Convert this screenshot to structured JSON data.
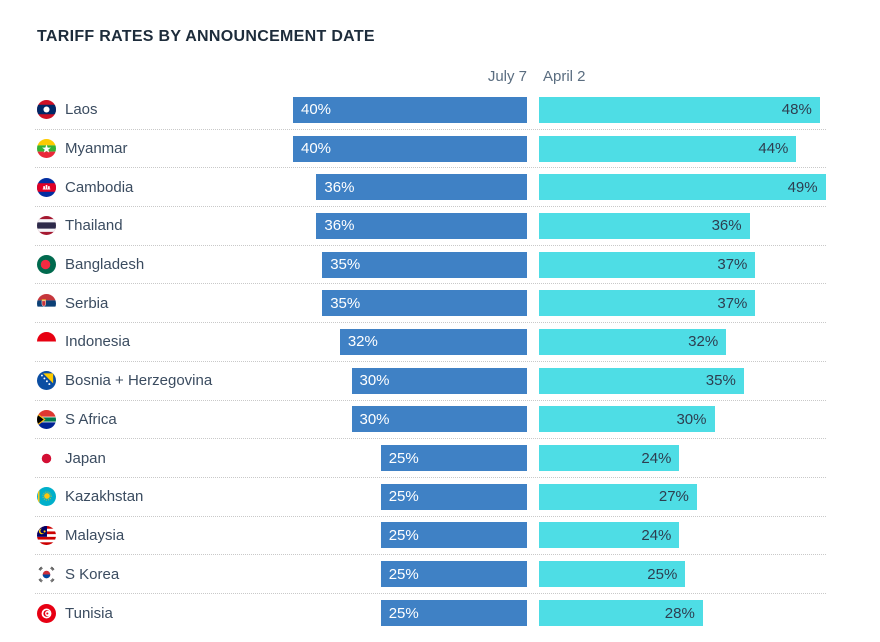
{
  "chart_data": {
    "type": "bar",
    "orientation": "horizontal",
    "title": "TARIFF RATES BY ANNOUNCEMENT DATE",
    "value_suffix": "%",
    "grid": false,
    "column_headers_position": "top",
    "categories": [
      "Laos",
      "Myanmar",
      "Cambodia",
      "Thailand",
      "Bangladesh",
      "Serbia",
      "Indonesia",
      "Bosnia + Herzegovina",
      "S Africa",
      "Japan",
      "Kazakhstan",
      "Malaysia",
      "S Korea",
      "Tunisia"
    ],
    "flag_icons": [
      "laos-flag-icon",
      "myanmar-flag-icon",
      "cambodia-flag-icon",
      "thailand-flag-icon",
      "bangladesh-flag-icon",
      "serbia-flag-icon",
      "indonesia-flag-icon",
      "bosnia-herzegovina-flag-icon",
      "south-africa-flag-icon",
      "japan-flag-icon",
      "kazakhstan-flag-icon",
      "malaysia-flag-icon",
      "south-korea-flag-icon",
      "tunisia-flag-icon"
    ],
    "series": [
      {
        "name": "July 7",
        "color": "#3f81c5",
        "text_color": "#ffffff",
        "bar_alignment": "right",
        "values": [
          40,
          40,
          36,
          36,
          35,
          35,
          32,
          30,
          30,
          25,
          25,
          25,
          25,
          25
        ]
      },
      {
        "name": "April 2",
        "color": "#4edde5",
        "text_color": "#2e3e50",
        "bar_alignment": "left",
        "values": [
          48,
          44,
          49,
          36,
          37,
          37,
          32,
          35,
          30,
          24,
          27,
          24,
          25,
          28
        ]
      }
    ],
    "xlim": [
      0,
      49
    ]
  }
}
